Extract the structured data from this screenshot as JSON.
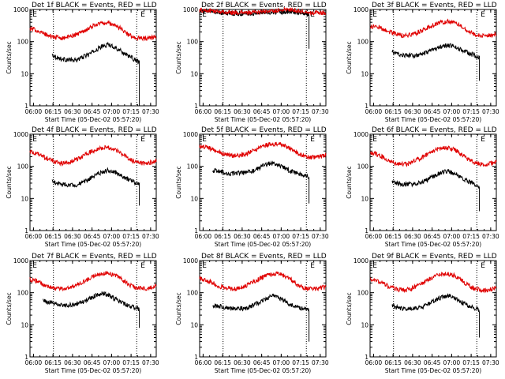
{
  "figure": {
    "background": "#ffffff",
    "events_color": "#000000",
    "lld_color": "#e00000"
  },
  "chart_data": [
    {
      "type": "line",
      "detector": "1f",
      "title": "Det 1f BLACK = Events, RED = LLD",
      "xlabel": "Start Time (05-Dec-02 05:57:20)",
      "ylabel": "Counts/sec",
      "x_ticks": [
        "06:00",
        "06:15",
        "06:30",
        "06:45",
        "07:00",
        "07:15",
        "07:30"
      ],
      "y_ticks": [
        "1",
        "10",
        "100",
        "1000"
      ],
      "yscale": "log",
      "ylim": [
        1,
        1000
      ],
      "xlim_min": [
        0,
        97
      ],
      "markers": [
        {
          "label": "E",
          "t": 2
        },
        {
          "label": "E",
          "t": 85
        }
      ],
      "vlines": [
        18,
        82
      ],
      "series": [
        {
          "name": "Events",
          "color": "#000000",
          "t": [
            17,
            20,
            25,
            35,
            40,
            45,
            50,
            55,
            60,
            65,
            70,
            75,
            80,
            84
          ],
          "values": [
            40,
            33,
            28,
            26,
            32,
            40,
            52,
            70,
            80,
            68,
            50,
            38,
            28,
            22
          ],
          "end_drop_to": 1
        },
        {
          "name": "LLD",
          "color": "#e00000",
          "t": [
            0,
            5,
            10,
            15,
            20,
            25,
            30,
            35,
            40,
            45,
            50,
            55,
            60,
            65,
            70,
            75,
            80,
            85,
            90,
            95,
            97
          ],
          "values": [
            250,
            230,
            180,
            150,
            135,
            130,
            140,
            165,
            200,
            260,
            330,
            380,
            380,
            330,
            250,
            170,
            135,
            125,
            125,
            135,
            145
          ]
        }
      ]
    },
    {
      "type": "line",
      "detector": "2f",
      "title": "Det 2f BLACK = Events, RED = LLD",
      "xlabel": "Start Time (05-Dec-02 05:57:20)",
      "ylabel": "Counts/sec",
      "x_ticks": [
        "06:00",
        "06:15",
        "06:30",
        "06:45",
        "07:00",
        "07:15",
        "07:30"
      ],
      "y_ticks": [
        "1",
        "10",
        "100",
        "1000"
      ],
      "yscale": "log",
      "ylim": [
        1,
        1000
      ],
      "xlim_min": [
        0,
        97
      ],
      "markers": [
        {
          "label": "E",
          "t": 2
        },
        {
          "label": "E",
          "t": 85
        }
      ],
      "vlines": [
        18,
        82
      ],
      "series": [
        {
          "name": "Events",
          "color": "#000000",
          "t": [
            0,
            10,
            20,
            30,
            40,
            50,
            60,
            70,
            80,
            84
          ],
          "values": [
            900,
            860,
            780,
            740,
            760,
            800,
            840,
            840,
            780,
            720
          ],
          "end_drop_to": 60
        },
        {
          "name": "LLD",
          "color": "#e00000",
          "t": [
            0,
            10,
            20,
            30,
            40,
            50,
            60,
            70,
            80,
            90,
            97
          ],
          "values": [
            950,
            900,
            820,
            790,
            800,
            850,
            950,
            1000,
            850,
            780,
            800
          ]
        }
      ]
    },
    {
      "type": "line",
      "detector": "3f",
      "title": "Det 3f BLACK = Events, RED = LLD",
      "xlabel": "Start Time (05-Dec-02 05:57:20)",
      "ylabel": "Counts/sec",
      "x_ticks": [
        "06:00",
        "06:15",
        "06:30",
        "06:45",
        "07:00",
        "07:15",
        "07:30"
      ],
      "y_ticks": [
        "1",
        "10",
        "100",
        "1000"
      ],
      "yscale": "log",
      "ylim": [
        1,
        1000
      ],
      "xlim_min": [
        0,
        97
      ],
      "markers": [
        {
          "label": "E",
          "t": 2
        },
        {
          "label": "E",
          "t": 85
        }
      ],
      "vlines": [
        18,
        82
      ],
      "series": [
        {
          "name": "Events",
          "color": "#000000",
          "t": [
            17,
            20,
            25,
            35,
            40,
            45,
            50,
            55,
            60,
            65,
            70,
            75,
            80,
            84
          ],
          "values": [
            48,
            42,
            38,
            36,
            40,
            47,
            58,
            70,
            78,
            70,
            55,
            45,
            38,
            32
          ],
          "end_drop_to": 6
        },
        {
          "name": "LLD",
          "color": "#e00000",
          "t": [
            0,
            5,
            10,
            15,
            20,
            25,
            30,
            35,
            40,
            45,
            50,
            55,
            60,
            65,
            70,
            75,
            80,
            85,
            90,
            95,
            97
          ],
          "values": [
            280,
            300,
            250,
            200,
            170,
            155,
            160,
            180,
            220,
            280,
            340,
            400,
            420,
            380,
            300,
            220,
            170,
            150,
            150,
            165,
            180
          ]
        }
      ]
    },
    {
      "type": "line",
      "detector": "4f",
      "title": "Det 4f BLACK = Events, RED = LLD",
      "xlabel": "Start Time (05-Dec-02 05:57:20)",
      "ylabel": "Counts/sec",
      "x_ticks": [
        "06:00",
        "06:15",
        "06:30",
        "06:45",
        "07:00",
        "07:15",
        "07:30"
      ],
      "y_ticks": [
        "1",
        "10",
        "100",
        "1000"
      ],
      "yscale": "log",
      "ylim": [
        1,
        1000
      ],
      "xlim_min": [
        0,
        97
      ],
      "markers": [
        {
          "label": "E",
          "t": 2
        },
        {
          "label": "E",
          "t": 85
        }
      ],
      "vlines": [
        18,
        82
      ],
      "series": [
        {
          "name": "Events",
          "color": "#000000",
          "t": [
            17,
            20,
            25,
            35,
            40,
            45,
            50,
            55,
            60,
            65,
            70,
            75,
            80,
            84
          ],
          "values": [
            35,
            30,
            27,
            26,
            30,
            38,
            52,
            65,
            75,
            68,
            50,
            40,
            32,
            28
          ],
          "end_drop_to": 6
        },
        {
          "name": "LLD",
          "color": "#e00000",
          "t": [
            0,
            5,
            10,
            15,
            20,
            25,
            30,
            35,
            40,
            45,
            50,
            55,
            60,
            65,
            70,
            75,
            80,
            85,
            90,
            95,
            97
          ],
          "values": [
            280,
            250,
            200,
            160,
            135,
            125,
            130,
            160,
            200,
            260,
            330,
            380,
            390,
            340,
            260,
            180,
            140,
            125,
            125,
            140,
            150
          ]
        }
      ]
    },
    {
      "type": "line",
      "detector": "5f",
      "title": "Det 5f BLACK = Events, RED = LLD",
      "xlabel": "Start Time (05-Dec-02 05:57:20)",
      "ylabel": "Counts/sec",
      "x_ticks": [
        "06:00",
        "06:15",
        "06:30",
        "06:45",
        "07:00",
        "07:15",
        "07:30"
      ],
      "y_ticks": [
        "1",
        "10",
        "100",
        "1000"
      ],
      "yscale": "log",
      "ylim": [
        1,
        1000
      ],
      "xlim_min": [
        0,
        97
      ],
      "markers": [
        {
          "label": "E",
          "t": 2
        },
        {
          "label": "E",
          "t": 85
        }
      ],
      "vlines": [
        18,
        82
      ],
      "series": [
        {
          "name": "Events",
          "color": "#000000",
          "t": [
            10,
            15,
            20,
            25,
            35,
            40,
            45,
            50,
            55,
            60,
            65,
            70,
            75,
            80,
            84
          ],
          "values": [
            75,
            70,
            62,
            60,
            62,
            70,
            85,
            110,
            125,
            110,
            90,
            70,
            60,
            55,
            45
          ],
          "end_drop_to": 7
        },
        {
          "name": "LLD",
          "color": "#e00000",
          "t": [
            0,
            5,
            10,
            15,
            20,
            25,
            30,
            35,
            40,
            45,
            50,
            55,
            60,
            65,
            70,
            75,
            80,
            85,
            90,
            95,
            97
          ],
          "values": [
            420,
            400,
            330,
            270,
            230,
            210,
            215,
            240,
            290,
            360,
            440,
            500,
            500,
            440,
            350,
            260,
            210,
            190,
            190,
            210,
            230
          ]
        }
      ]
    },
    {
      "type": "line",
      "detector": "6f",
      "title": "Det 6f BLACK = Events, RED = LLD",
      "xlabel": "Start Time (05-Dec-02 05:57:20)",
      "ylabel": "Counts/sec",
      "x_ticks": [
        "06:00",
        "06:15",
        "06:30",
        "06:45",
        "07:00",
        "07:15",
        "07:30"
      ],
      "y_ticks": [
        "1",
        "10",
        "100",
        "1000"
      ],
      "yscale": "log",
      "ylim": [
        1,
        1000
      ],
      "xlim_min": [
        0,
        97
      ],
      "markers": [
        {
          "label": "E",
          "t": 2
        },
        {
          "label": "E",
          "t": 85
        }
      ],
      "vlines": [
        18,
        82
      ],
      "series": [
        {
          "name": "Events",
          "color": "#000000",
          "t": [
            17,
            20,
            25,
            35,
            40,
            45,
            50,
            55,
            60,
            65,
            70,
            75,
            80,
            84
          ],
          "values": [
            35,
            30,
            27,
            28,
            33,
            40,
            52,
            65,
            72,
            60,
            45,
            35,
            28,
            22
          ],
          "end_drop_to": 4
        },
        {
          "name": "LLD",
          "color": "#e00000",
          "t": [
            0,
            5,
            10,
            15,
            20,
            25,
            30,
            35,
            40,
            45,
            50,
            55,
            60,
            65,
            70,
            75,
            80,
            85,
            90,
            95,
            97
          ],
          "values": [
            270,
            240,
            190,
            150,
            125,
            115,
            120,
            150,
            190,
            250,
            320,
            370,
            380,
            330,
            250,
            170,
            130,
            115,
            115,
            130,
            140
          ]
        }
      ]
    },
    {
      "type": "line",
      "detector": "7f",
      "title": "Det 7f BLACK = Events, RED = LLD",
      "xlabel": "Start Time (05-Dec-02 05:57:20)",
      "ylabel": "Counts/sec",
      "x_ticks": [
        "06:00",
        "06:15",
        "06:30",
        "06:45",
        "07:00",
        "07:15",
        "07:30"
      ],
      "y_ticks": [
        "1",
        "10",
        "100",
        "1000"
      ],
      "yscale": "log",
      "ylim": [
        1,
        1000
      ],
      "xlim_min": [
        0,
        97
      ],
      "markers": [
        {
          "label": "E",
          "t": 2
        },
        {
          "label": "E",
          "t": 85
        }
      ],
      "vlines": [
        18,
        82
      ],
      "series": [
        {
          "name": "Events",
          "color": "#000000",
          "t": [
            10,
            15,
            20,
            25,
            35,
            40,
            45,
            50,
            55,
            60,
            65,
            70,
            75,
            80,
            84
          ],
          "values": [
            55,
            50,
            45,
            40,
            42,
            50,
            62,
            80,
            95,
            85,
            65,
            50,
            40,
            35,
            30
          ],
          "end_drop_to": 8
        },
        {
          "name": "LLD",
          "color": "#e00000",
          "t": [
            0,
            5,
            10,
            15,
            20,
            25,
            30,
            35,
            40,
            45,
            50,
            55,
            60,
            65,
            70,
            75,
            80,
            85,
            90,
            95,
            97
          ],
          "values": [
            260,
            230,
            180,
            150,
            135,
            130,
            140,
            170,
            210,
            270,
            340,
            390,
            400,
            350,
            270,
            190,
            150,
            135,
            135,
            150,
            160
          ]
        }
      ]
    },
    {
      "type": "line",
      "detector": "8f",
      "title": "Det 8f BLACK = Events, RED = LLD",
      "xlabel": "Start Time (05-Dec-02 05:57:20)",
      "ylabel": "Counts/sec",
      "x_ticks": [
        "06:00",
        "06:15",
        "06:30",
        "06:45",
        "07:00",
        "07:15",
        "07:30"
      ],
      "y_ticks": [
        "1",
        "10",
        "100",
        "1000"
      ],
      "yscale": "log",
      "ylim": [
        1,
        1000
      ],
      "xlim_min": [
        0,
        97
      ],
      "markers": [
        {
          "label": "E",
          "t": 2
        },
        {
          "label": "E",
          "t": 85
        }
      ],
      "vlines": [
        18,
        82
      ],
      "series": [
        {
          "name": "Events",
          "color": "#000000",
          "t": [
            10,
            15,
            20,
            25,
            35,
            40,
            45,
            50,
            55,
            60,
            65,
            70,
            75,
            80,
            84
          ],
          "values": [
            40,
            38,
            34,
            32,
            32,
            38,
            48,
            62,
            78,
            72,
            55,
            42,
            35,
            32,
            28
          ],
          "end_drop_to": 3
        },
        {
          "name": "LLD",
          "color": "#e00000",
          "t": [
            0,
            5,
            10,
            15,
            20,
            25,
            30,
            35,
            40,
            45,
            50,
            55,
            60,
            65,
            70,
            75,
            80,
            85,
            90,
            95,
            97
          ],
          "values": [
            280,
            250,
            200,
            160,
            140,
            130,
            135,
            160,
            200,
            260,
            330,
            380,
            390,
            340,
            260,
            180,
            140,
            130,
            130,
            145,
            155
          ]
        }
      ]
    },
    {
      "type": "line",
      "detector": "9f",
      "title": "Det 9f BLACK = Events, RED = LLD",
      "xlabel": "Start Time (05-Dec-02 05:57:20)",
      "ylabel": "Counts/sec",
      "x_ticks": [
        "06:00",
        "06:15",
        "06:30",
        "06:45",
        "07:00",
        "07:15",
        "07:30"
      ],
      "y_ticks": [
        "1",
        "10",
        "100",
        "1000"
      ],
      "yscale": "log",
      "ylim": [
        1,
        1000
      ],
      "xlim_min": [
        0,
        97
      ],
      "markers": [
        {
          "label": "E",
          "t": 2
        },
        {
          "label": "E",
          "t": 85
        }
      ],
      "vlines": [
        18,
        82
      ],
      "series": [
        {
          "name": "Events",
          "color": "#000000",
          "t": [
            17,
            20,
            25,
            35,
            40,
            45,
            50,
            55,
            60,
            65,
            70,
            75,
            80,
            84
          ],
          "values": [
            40,
            35,
            32,
            32,
            36,
            45,
            58,
            72,
            80,
            70,
            52,
            40,
            33,
            28
          ],
          "end_drop_to": 4
        },
        {
          "name": "LLD",
          "color": "#e00000",
          "t": [
            0,
            5,
            10,
            15,
            20,
            25,
            30,
            35,
            40,
            45,
            50,
            55,
            60,
            65,
            70,
            75,
            80,
            85,
            90,
            95,
            97
          ],
          "values": [
            270,
            240,
            190,
            150,
            130,
            120,
            125,
            155,
            195,
            255,
            325,
            375,
            385,
            335,
            255,
            175,
            135,
            120,
            120,
            135,
            145
          ]
        }
      ]
    }
  ]
}
